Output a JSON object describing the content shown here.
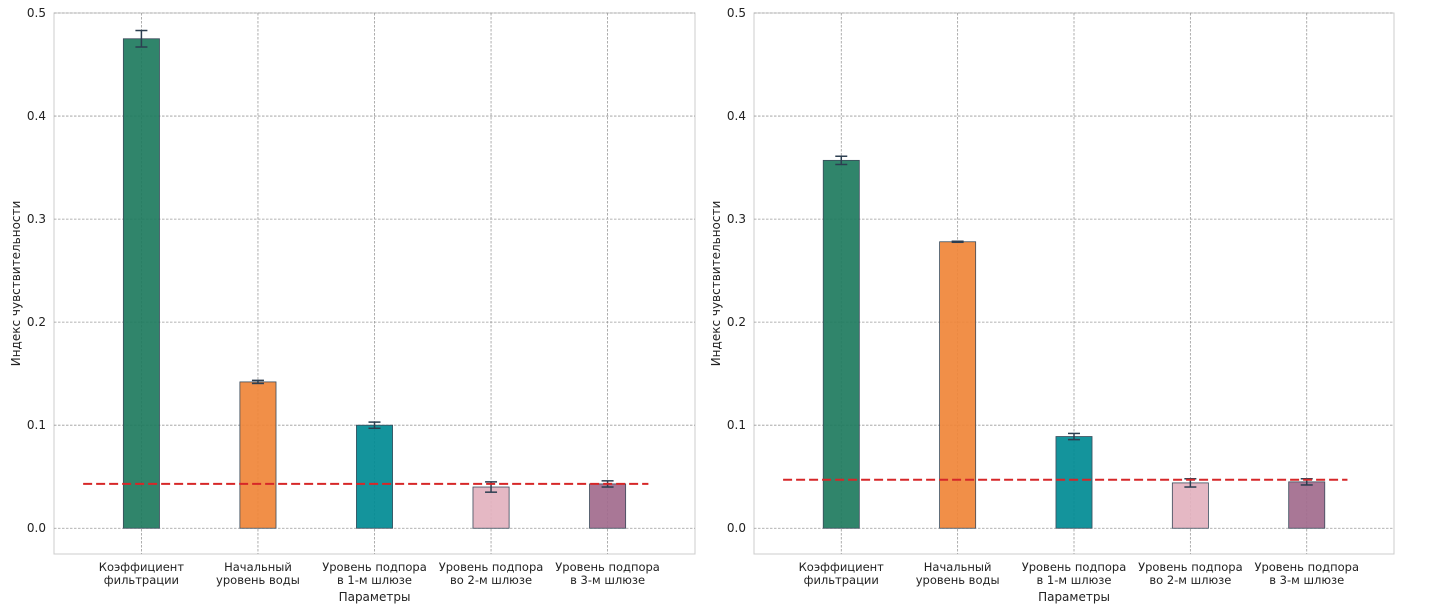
{
  "chart_data": [
    {
      "type": "bar",
      "title": "",
      "xlabel": "Параметры",
      "ylabel": "Индекс чувствительности",
      "ylim": [
        -0.025,
        0.5
      ],
      "yticks": [
        "0.0",
        "0.1",
        "0.2",
        "0.3",
        "0.4",
        "0.5"
      ],
      "grid": true,
      "categories": [
        [
          "Коэффициент",
          "фильтрации"
        ],
        [
          "Начальный",
          "уровень воды"
        ],
        [
          "Уровень подпора",
          "в 1-м шлюзе"
        ],
        [
          "Уровень подпора",
          "во 2-м шлюзе"
        ],
        [
          "Уровень подпора",
          "в 3-м шлюзе"
        ]
      ],
      "values": [
        0.475,
        0.142,
        0.1,
        0.04,
        0.043
      ],
      "errors": [
        0.008,
        0.0015,
        0.003,
        0.005,
        0.003
      ],
      "threshold": 0.043,
      "colors": [
        "#1e7b5e",
        "#f08538",
        "#008b94",
        "#e3b2bf",
        "#a26b8d"
      ]
    },
    {
      "type": "bar",
      "title": "",
      "xlabel": "Параметры",
      "ylabel": "Индекс чувствительности",
      "ylim": [
        -0.025,
        0.5
      ],
      "yticks": [
        "0.0",
        "0.1",
        "0.2",
        "0.3",
        "0.4",
        "0.5"
      ],
      "grid": true,
      "categories": [
        [
          "Коэффициент",
          "фильтрации"
        ],
        [
          "Начальный",
          "уровень воды"
        ],
        [
          "Уровень подпора",
          "в 1-м шлюзе"
        ],
        [
          "Уровень подпора",
          "во 2-м шлюзе"
        ],
        [
          "Уровень подпора",
          "в 3-м шлюзе"
        ]
      ],
      "values": [
        0.357,
        0.278,
        0.089,
        0.044,
        0.045
      ],
      "errors": [
        0.004,
        0.0005,
        0.003,
        0.004,
        0.003
      ],
      "threshold": 0.047,
      "colors": [
        "#1e7b5e",
        "#f08538",
        "#008b94",
        "#e3b2bf",
        "#a26b8d"
      ]
    }
  ]
}
